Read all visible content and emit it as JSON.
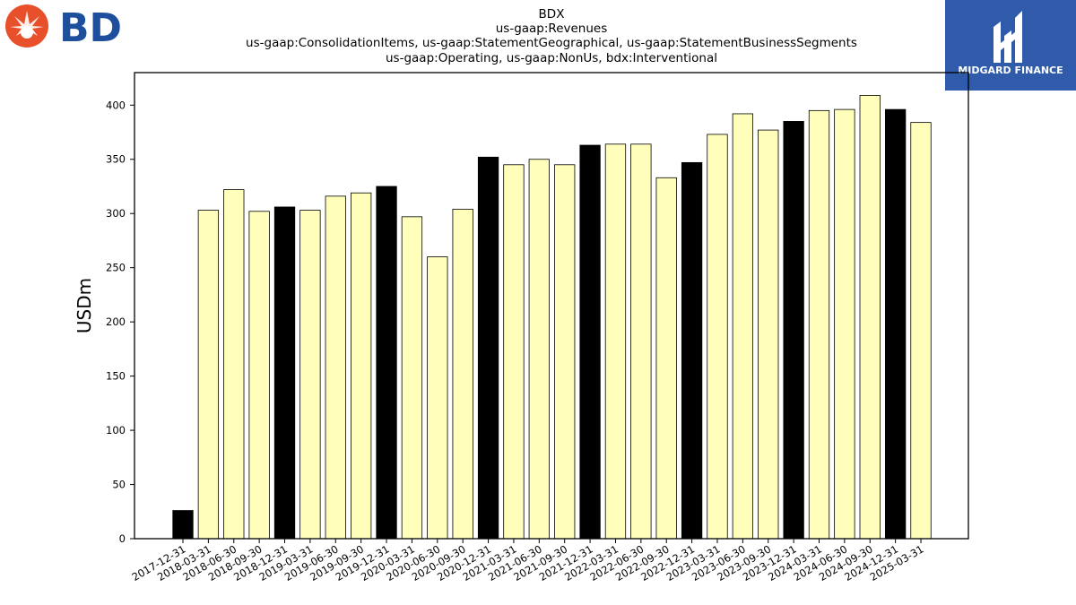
{
  "branding": {
    "left_logo_text": "BD",
    "right_logo_text": "MIDGARD FINANCE",
    "left_logo_color": "#1e4f9c",
    "left_logo_burst_color": "#e8502b",
    "right_logo_bg": "#2f5baa"
  },
  "chart_data": {
    "type": "bar",
    "title_lines": [
      "BDX",
      "us-gaap:Revenues",
      "us-gaap:ConsolidationItems, us-gaap:StatementGeographical, us-gaap:StatementBusinessSegments",
      "us-gaap:Operating, us-gaap:NonUs, bdx:Interventional"
    ],
    "xlabel": "",
    "ylabel": "USDm",
    "ylim": [
      0,
      430
    ],
    "yticks": [
      0,
      50,
      100,
      150,
      200,
      250,
      300,
      350,
      400
    ],
    "grid": false,
    "legend": "none",
    "colors": {
      "fiscal_year_end": "#000000",
      "quarter": "#ffffbb",
      "edge": "#000000"
    },
    "categories": [
      "2017-12-31",
      "2018-03-31",
      "2018-06-30",
      "2018-09-30",
      "2018-12-31",
      "2019-03-31",
      "2019-06-30",
      "2019-09-30",
      "2019-12-31",
      "2020-03-31",
      "2020-06-30",
      "2020-09-30",
      "2020-12-31",
      "2021-03-31",
      "2021-06-30",
      "2021-09-30",
      "2021-12-31",
      "2022-03-31",
      "2022-06-30",
      "2022-09-30",
      "2022-12-31",
      "2023-03-31",
      "2023-06-30",
      "2023-09-30",
      "2023-12-31",
      "2024-03-31",
      "2024-06-30",
      "2024-09-30",
      "2024-12-31",
      "2025-03-31"
    ],
    "values": [
      26,
      303,
      322,
      302,
      306,
      303,
      316,
      319,
      325,
      297,
      260,
      304,
      352,
      345,
      350,
      345,
      363,
      364,
      364,
      333,
      347,
      373,
      392,
      377,
      385,
      395,
      396,
      409,
      396,
      384
    ],
    "highlight_indices": [
      0,
      4,
      8,
      12,
      16,
      20,
      24,
      28
    ]
  }
}
